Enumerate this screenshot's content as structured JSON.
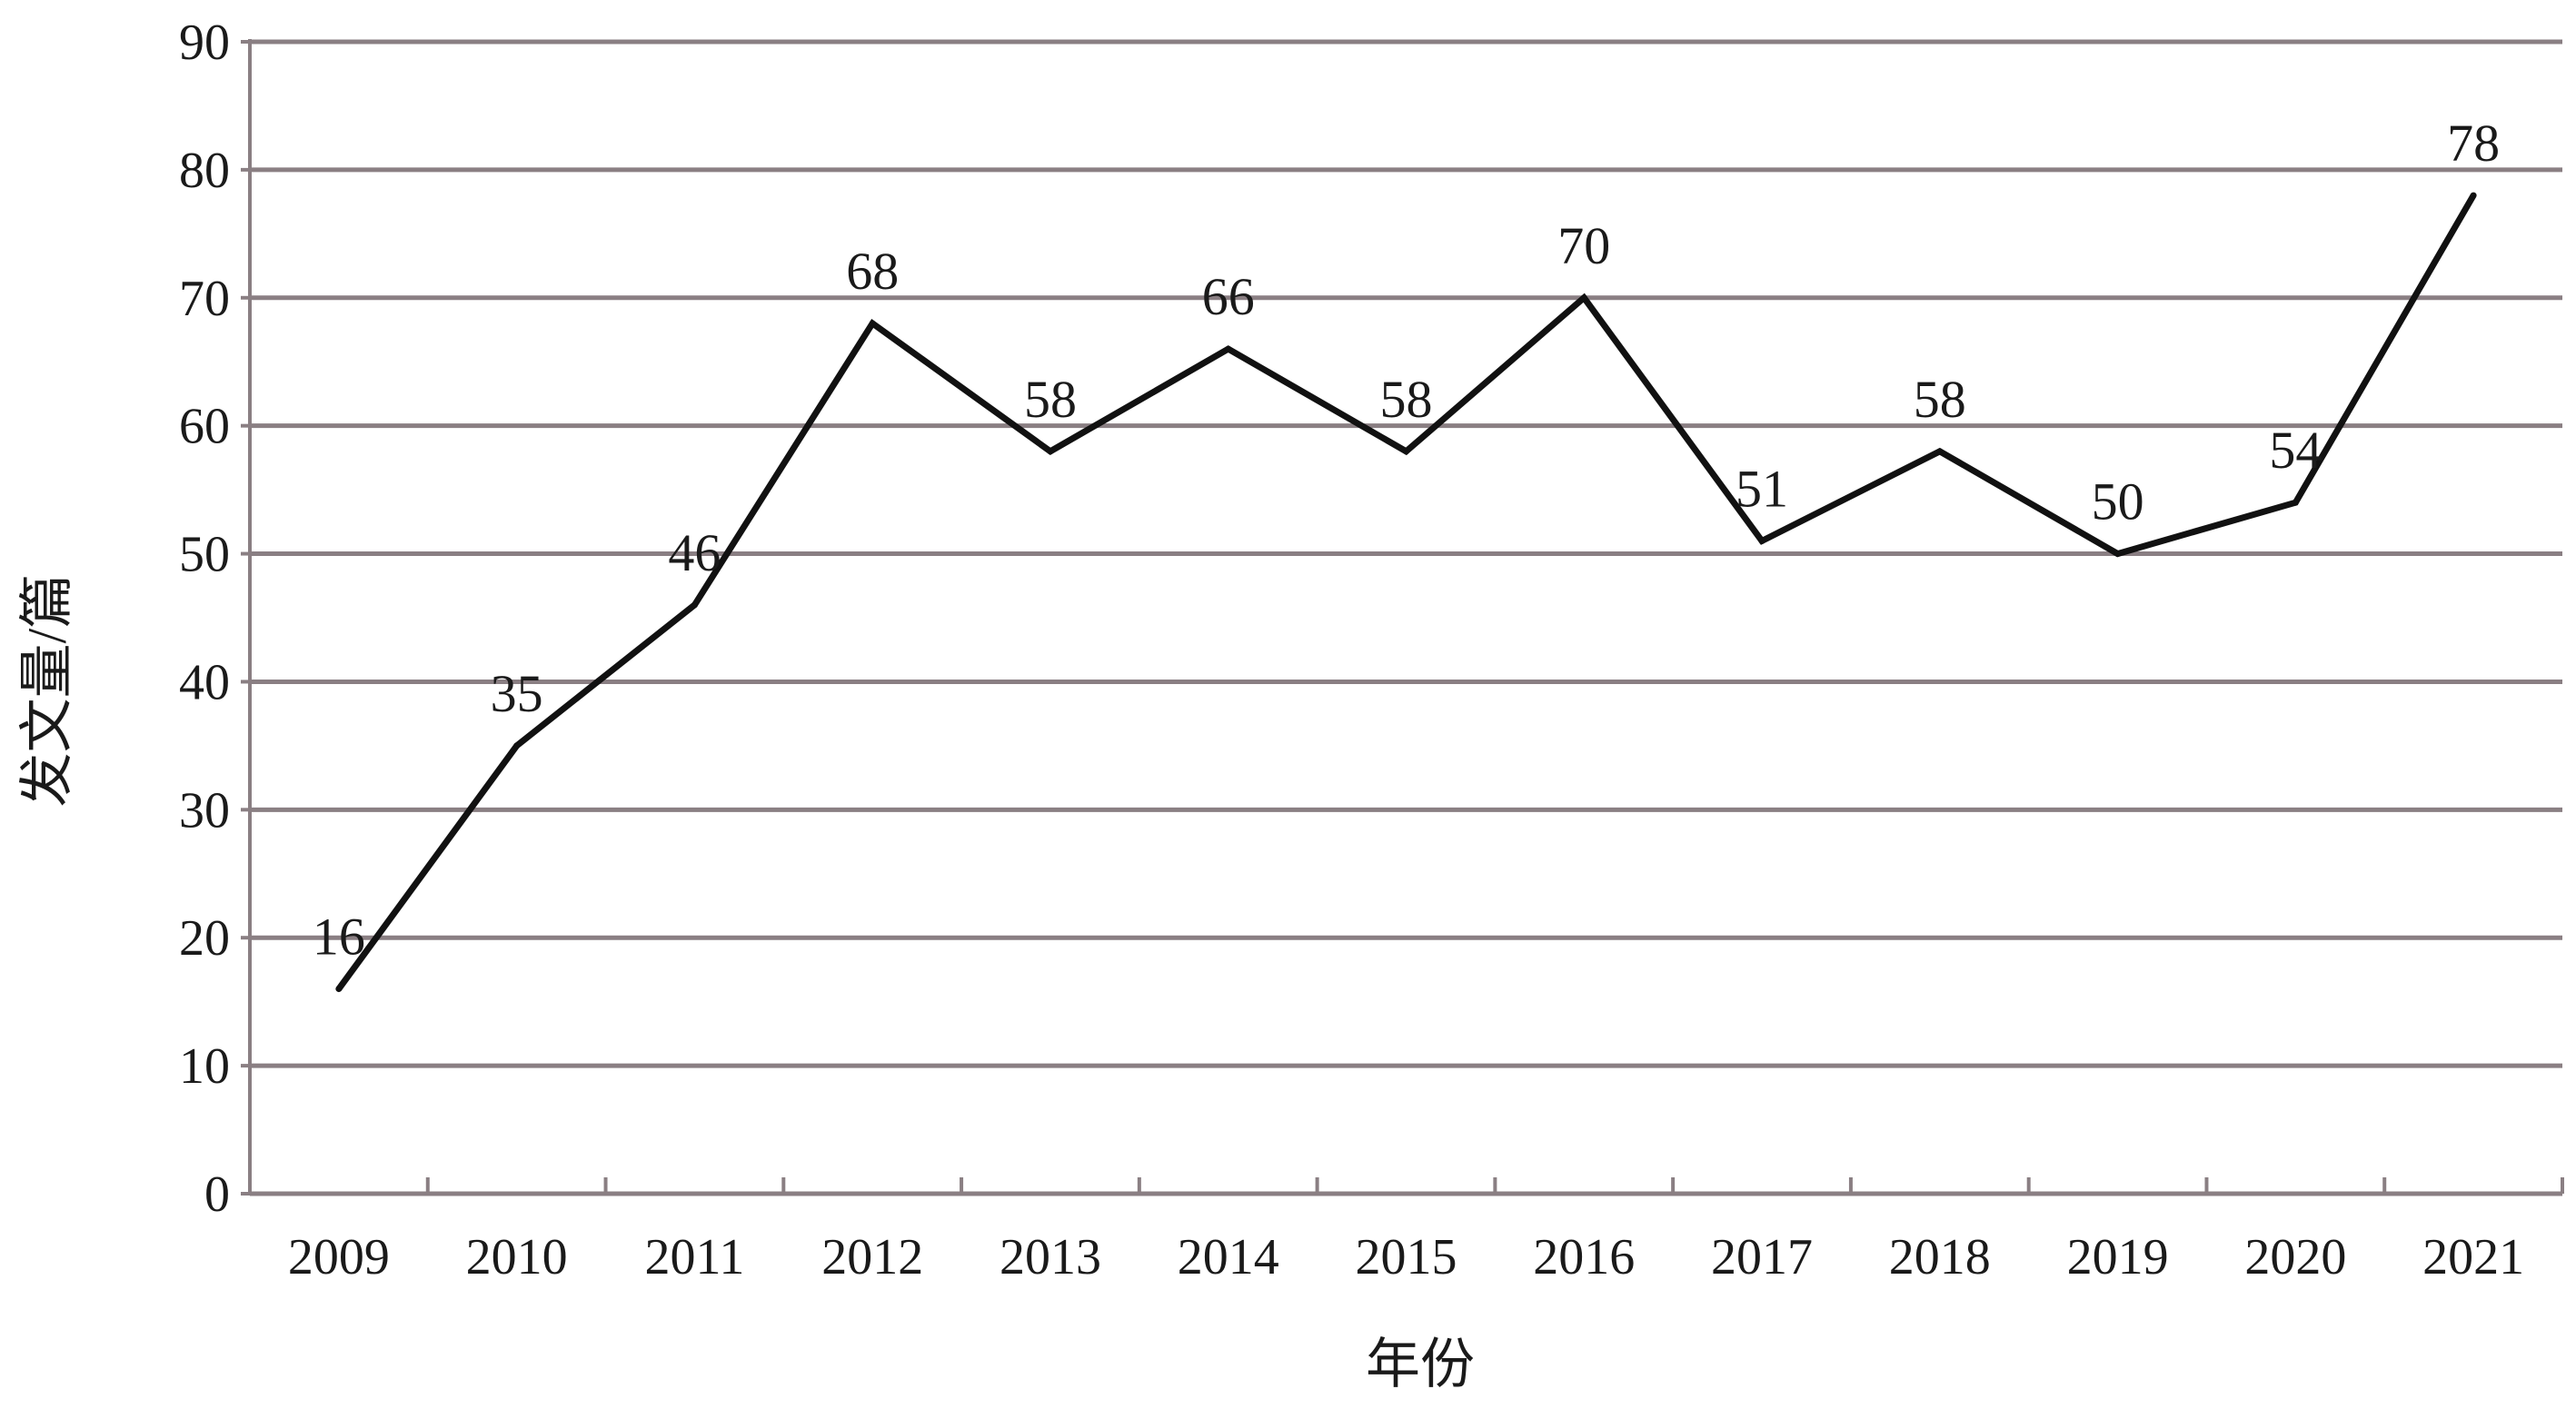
{
  "chart_data": {
    "type": "line",
    "title": "",
    "xlabel": "年份",
    "ylabel": "发文量/篇",
    "categories": [
      "2009",
      "2010",
      "2011",
      "2012",
      "2013",
      "2014",
      "2015",
      "2016",
      "2017",
      "2018",
      "2019",
      "2020",
      "2021"
    ],
    "series": [
      {
        "values": [
          16,
          35,
          46,
          68,
          58,
          66,
          58,
          70,
          51,
          58,
          50,
          54,
          78
        ]
      }
    ],
    "ylim": [
      0,
      90
    ],
    "yticks": [
      "0",
      "10",
      "20",
      "30",
      "40",
      "50",
      "60",
      "70",
      "80",
      "90"
    ],
    "grid": true,
    "legend": "none",
    "data_labels": true,
    "colors": {
      "line": "#111111",
      "grid": "#8a7f83",
      "axis": "#8a7f83",
      "text": "#1a1a1a"
    }
  }
}
